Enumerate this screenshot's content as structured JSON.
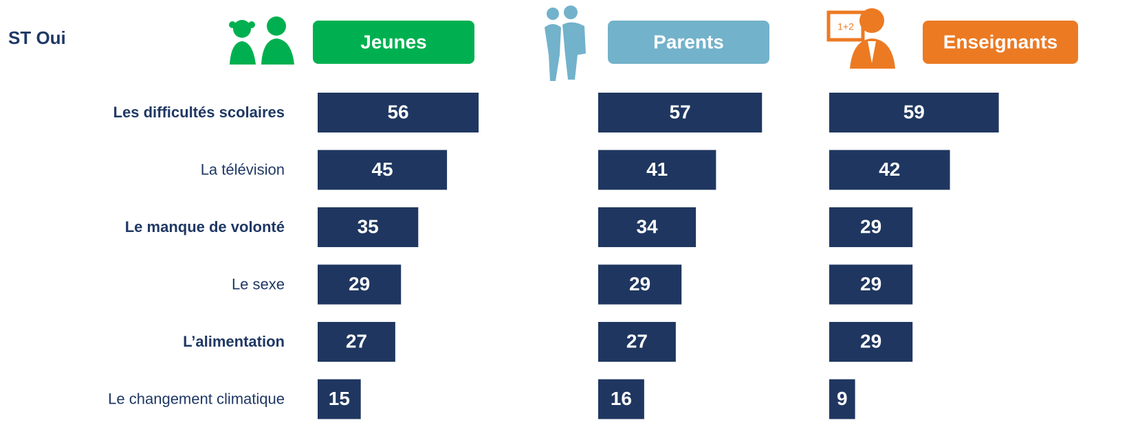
{
  "title": "ST Oui",
  "categories": [
    "Les difficultés scolaires",
    "La télévision",
    "Le manque de volonté",
    "Le sexe",
    "L’alimentation",
    "Le changement climatique"
  ],
  "chart_data": [
    {
      "type": "bar",
      "title": "Jeunes",
      "header_color": "#00b050",
      "color": "#1f3760",
      "values": [
        56,
        45,
        35,
        29,
        27,
        15
      ]
    },
    {
      "type": "bar",
      "title": "Parents",
      "header_color": "#73b2cb",
      "color": "#1f3760",
      "values": [
        57,
        41,
        34,
        29,
        27,
        16
      ]
    },
    {
      "type": "bar",
      "title": "Enseignants",
      "header_color": "#ec7a23",
      "color": "#1f3760",
      "values": [
        59,
        42,
        29,
        29,
        29,
        9
      ]
    }
  ]
}
